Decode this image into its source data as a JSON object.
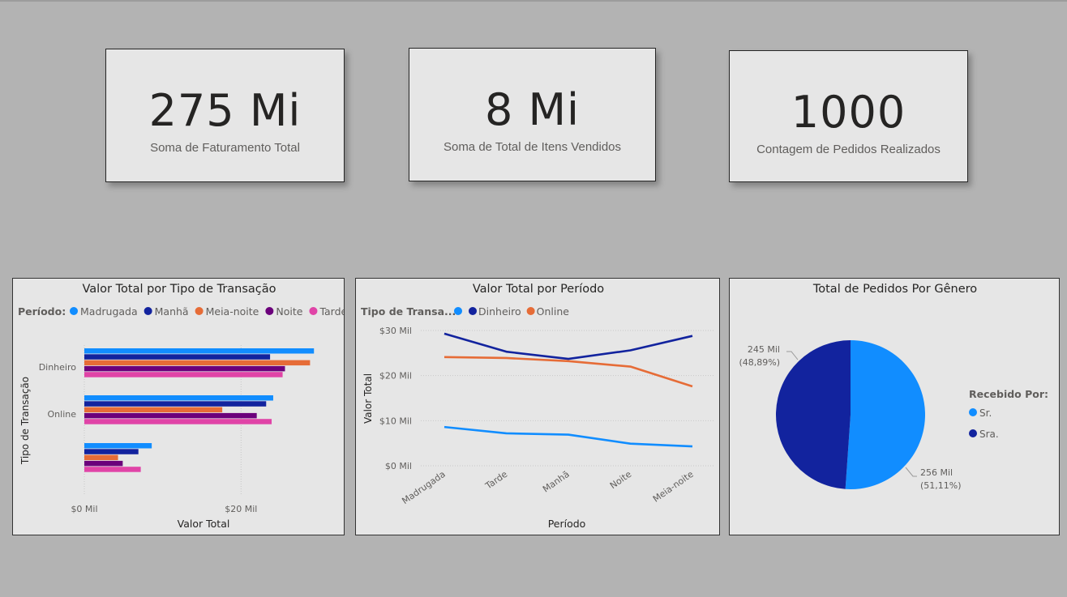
{
  "kpis": [
    {
      "value": "275 Mi",
      "label": "Soma de Faturamento Total"
    },
    {
      "value": "8 Mi",
      "label": "Soma de Total de Itens Vendidos"
    },
    {
      "value": "1000",
      "label": "Contagem de Pedidos Realizados"
    }
  ],
  "colors": {
    "madrugada": "#118dff",
    "manha": "#12239e",
    "meia_noite": "#e66c37",
    "noite": "#6b007b",
    "tarde": "#e044a7",
    "dinheiro": "#12239e",
    "online": "#e66c37",
    "sr": "#118dff",
    "sra": "#12239e"
  },
  "chart_data": [
    {
      "type": "bar",
      "orientation": "horizontal",
      "title": "Valor Total por Tipo de Transação",
      "legend_title": "Período:",
      "xlabel": "Valor Total",
      "ylabel": "Tipo de Transação",
      "categories": [
        "Dinheiro",
        "Online",
        ""
      ],
      "series": [
        {
          "name": "Madrugada",
          "values": [
            29.3,
            24.1,
            8.6
          ]
        },
        {
          "name": "Manhã",
          "values": [
            23.7,
            23.2,
            6.9
          ]
        },
        {
          "name": "Meia-noite",
          "values": [
            28.8,
            17.6,
            4.3
          ]
        },
        {
          "name": "Noite",
          "values": [
            25.6,
            22.0,
            4.9
          ]
        },
        {
          "name": "Tarde",
          "values": [
            25.3,
            23.9,
            7.2
          ]
        }
      ],
      "xlim": [
        0,
        30
      ],
      "xticks": [
        "$0 Mil",
        "$20 Mil"
      ],
      "xtick_values": [
        0,
        20
      ],
      "legend_position": "top-left"
    },
    {
      "type": "line",
      "title": "Valor Total por Período",
      "legend_title": "Tipo de Transa...",
      "xlabel": "Período",
      "ylabel": "Valor Total",
      "categories": [
        "Madrugada",
        "Tarde",
        "Manhã",
        "Noite",
        "Meia-noite"
      ],
      "series": [
        {
          "name": "",
          "values": [
            8.6,
            7.2,
            6.9,
            4.9,
            4.3
          ]
        },
        {
          "name": "Dinheiro",
          "values": [
            29.3,
            25.3,
            23.7,
            25.6,
            28.8
          ]
        },
        {
          "name": "Online",
          "values": [
            24.1,
            23.9,
            23.2,
            22.0,
            17.6
          ]
        }
      ],
      "ylim": [
        0,
        30
      ],
      "yticks": [
        "$0 Mil",
        "$10 Mil",
        "$20 Mil",
        "$30 Mil"
      ],
      "ytick_values": [
        0,
        10,
        20,
        30
      ],
      "legend_position": "top-left",
      "grid": true
    },
    {
      "type": "pie",
      "title": "Total de Pedidos Por Gênero",
      "legend_title": "Recebido Por:",
      "slices": [
        {
          "name": "Sr.",
          "value": 256,
          "label": "256 Mil",
          "pct": "(51,11%)"
        },
        {
          "name": "Sra.",
          "value": 245,
          "label": "245 Mil",
          "pct": "(48,89%)"
        }
      ],
      "legend_position": "right"
    }
  ]
}
